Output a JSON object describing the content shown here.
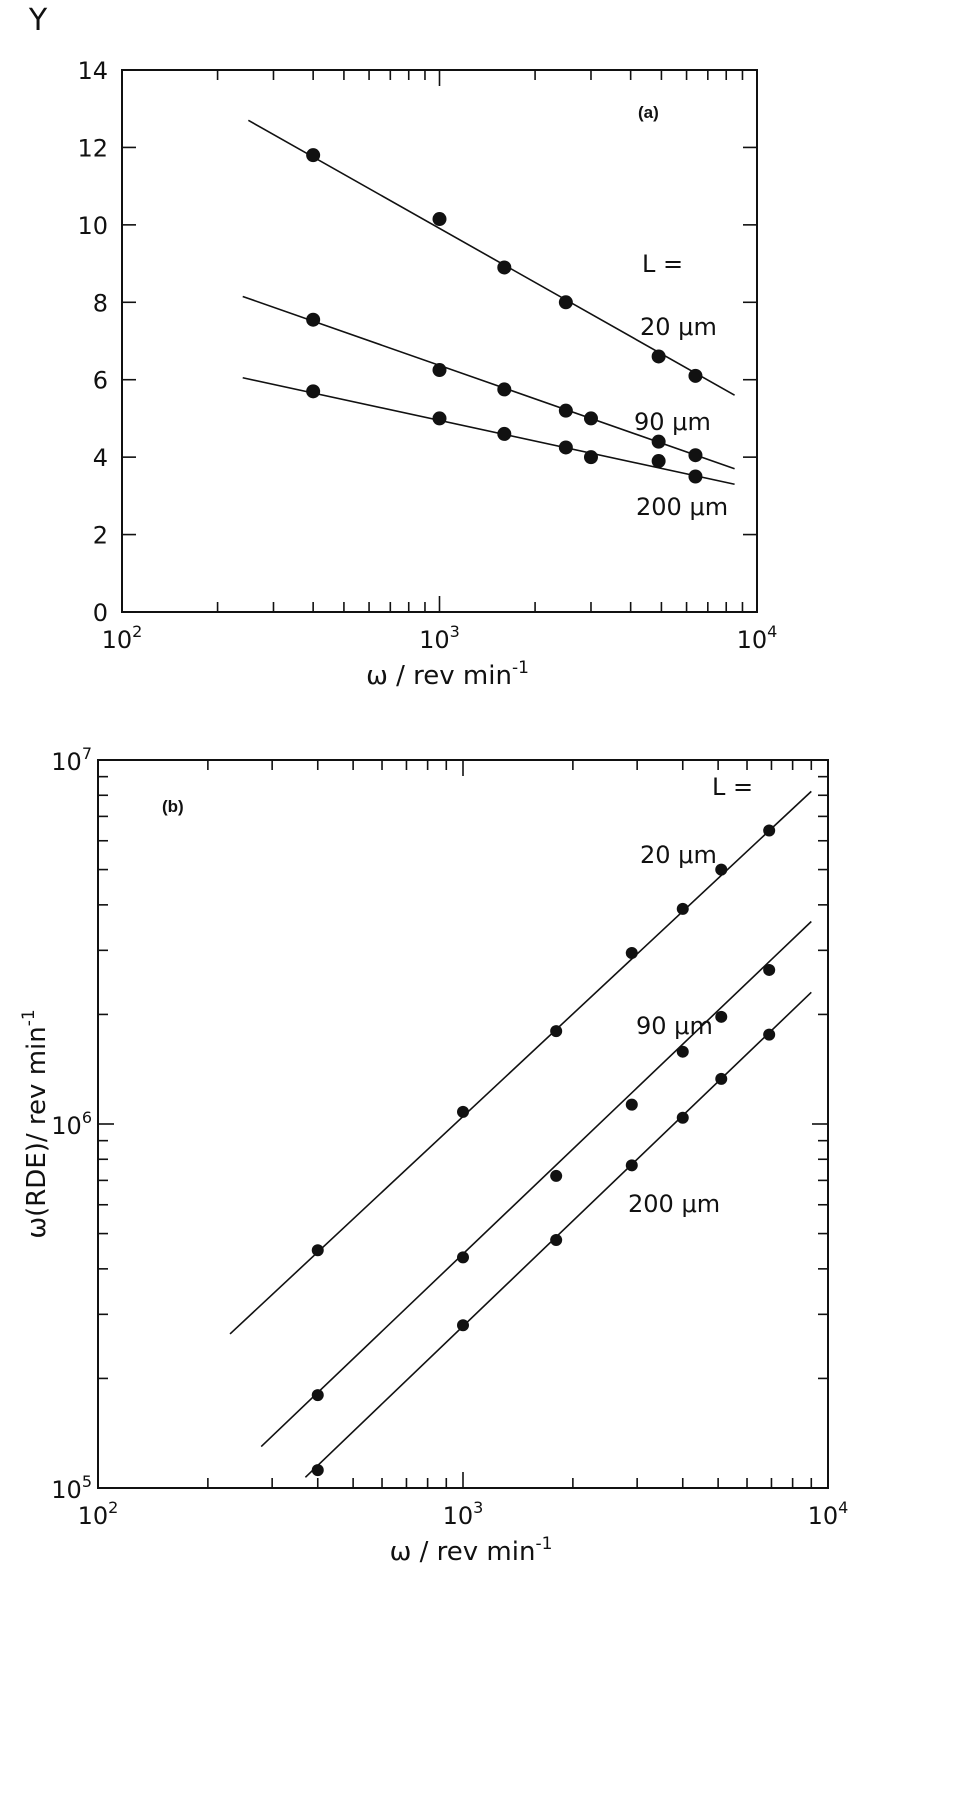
{
  "chart_data": [
    {
      "type": "scatter",
      "panel_label": "(a)",
      "ylabel": "Y",
      "xlabel": "ω / rev min",
      "xlabel_superscript": "-1",
      "x_scale": "log",
      "xlim": [
        100,
        10000
      ],
      "ylim": [
        0,
        14
      ],
      "x_ticks": [
        {
          "base": "10",
          "exp": "2"
        },
        {
          "base": "10",
          "exp": "3"
        },
        {
          "base": "10",
          "exp": "4"
        }
      ],
      "y_ticks": [
        "0",
        "2",
        "4",
        "6",
        "8",
        "10",
        "12",
        "14"
      ],
      "legend_title": "L =",
      "series": [
        {
          "name": "20 μm",
          "x": [
            400,
            1000,
            1600,
            2500,
            4900,
            6400
          ],
          "y": [
            11.8,
            10.15,
            8.9,
            8.0,
            6.6,
            6.1
          ],
          "fit": [
            [
              250,
              12.7
            ],
            [
              8500,
              5.6
            ]
          ]
        },
        {
          "name": "90 μm",
          "x": [
            400,
            1000,
            1600,
            2500,
            3000,
            4900,
            6400
          ],
          "y": [
            7.55,
            6.25,
            5.75,
            5.2,
            5.0,
            4.4,
            4.05
          ],
          "fit": [
            [
              240,
              8.15
            ],
            [
              8500,
              3.7
            ]
          ]
        },
        {
          "name": "200 μm",
          "x": [
            400,
            1000,
            1600,
            2500,
            3000,
            4900,
            6400
          ],
          "y": [
            5.7,
            5.0,
            4.6,
            4.25,
            4.0,
            3.9,
            3.5
          ],
          "fit": [
            [
              240,
              6.05
            ],
            [
              8500,
              3.3
            ]
          ]
        }
      ],
      "grid": false
    },
    {
      "type": "scatter",
      "panel_label": "(b)",
      "ylabel": "ω(RDE)/ rev min",
      "ylabel_superscript": "-1",
      "xlabel": "ω / rev min",
      "xlabel_superscript": "-1",
      "x_scale": "log",
      "y_scale": "log",
      "xlim": [
        100,
        10000
      ],
      "ylim": [
        100000,
        10000000
      ],
      "x_ticks": [
        {
          "base": "10",
          "exp": "2"
        },
        {
          "base": "10",
          "exp": "3"
        },
        {
          "base": "10",
          "exp": "4"
        }
      ],
      "y_ticks": [
        {
          "base": "10",
          "exp": "5"
        },
        {
          "base": "10",
          "exp": "6"
        },
        {
          "base": "10",
          "exp": "7"
        }
      ],
      "legend_title": "L =",
      "series": [
        {
          "name": "20 μm",
          "x": [
            400,
            1000,
            1800,
            2900,
            4000,
            5100,
            6900
          ],
          "y": [
            450000,
            1080000,
            1800000,
            2950000,
            3900000,
            5000000,
            6400000
          ],
          "fit": [
            [
              230,
              265000
            ],
            [
              9000,
              8200000
            ]
          ]
        },
        {
          "name": "90 μm",
          "x": [
            400,
            1000,
            1800,
            2900,
            4000,
            5100,
            6900
          ],
          "y": [
            180000,
            430000,
            720000,
            1130000,
            1580000,
            1970000,
            2650000
          ],
          "fit": [
            [
              280,
              130000
            ],
            [
              9000,
              3600000
            ]
          ]
        },
        {
          "name": "200 μm",
          "x": [
            400,
            1000,
            1800,
            2900,
            4000,
            5100,
            6900
          ],
          "y": [
            112000,
            280000,
            480000,
            770000,
            1040000,
            1330000,
            1760000
          ],
          "fit": [
            [
              370,
              107000
            ],
            [
              9000,
              2300000
            ]
          ]
        }
      ],
      "grid": false
    }
  ]
}
